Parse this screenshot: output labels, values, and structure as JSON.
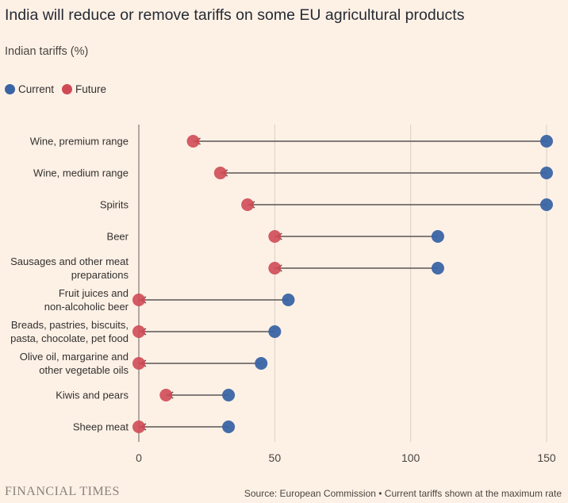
{
  "title": "India will reduce or remove tariffs on some EU agricultural products",
  "subtitle": "Indian tariffs (%)",
  "legend": [
    {
      "label": "Current",
      "color": "#3a64a5"
    },
    {
      "label": "Future",
      "color": "#d04a55"
    }
  ],
  "footer": {
    "brand": "FINANCIAL TIMES",
    "source": "Source: European Commission • Current tariffs shown at the maximum rate"
  },
  "chart_data": {
    "type": "dot-range",
    "categories": [
      [
        "Wine, premium range"
      ],
      [
        "Wine, medium range"
      ],
      [
        "Spirits"
      ],
      [
        "Beer"
      ],
      [
        "Sausages and other meat",
        "preparations"
      ],
      [
        "Fruit juices and",
        "non-alcoholic beer"
      ],
      [
        "Breads, pastries, biscuits,",
        "pasta, chocolate, pet food"
      ],
      [
        "Olive oil, margarine and",
        "other vegetable oils"
      ],
      [
        "Kiwis and pears"
      ],
      [
        "Sheep meat"
      ]
    ],
    "series": [
      {
        "name": "Current",
        "color": "#3a64a5",
        "values": [
          150,
          150,
          150,
          110,
          110,
          55,
          50,
          45,
          33,
          33
        ]
      },
      {
        "name": "Future",
        "color": "#d04a55",
        "values": [
          20,
          30,
          40,
          50,
          50,
          0,
          0,
          0,
          10,
          0
        ]
      }
    ],
    "xticks": [
      0,
      50,
      100,
      150
    ],
    "xlim": [
      0,
      150
    ],
    "grid": "vertical",
    "legend_position": "top-left"
  }
}
